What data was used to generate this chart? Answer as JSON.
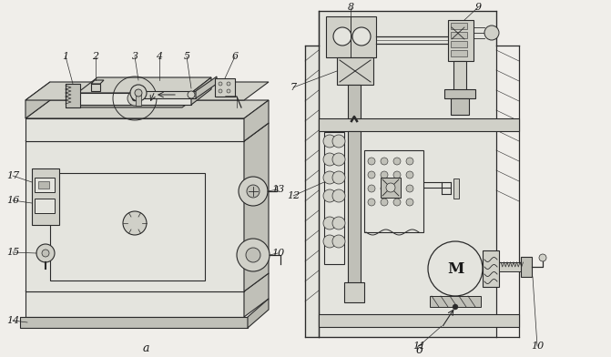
{
  "bg_color": "#f0eeea",
  "line_color": "#2a2a2a",
  "text_color": "#1a1a1a",
  "label_a": "а",
  "label_b": "б",
  "fig_width": 6.71,
  "fig_height": 3.92,
  "dpi": 100,
  "gray1": "#d0d0c8",
  "gray2": "#c0c0b8",
  "gray3": "#e4e4de",
  "gray4": "#b8b8b0"
}
